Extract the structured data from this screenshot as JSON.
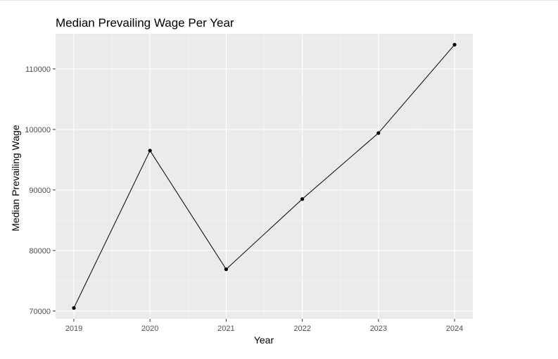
{
  "chart_data": {
    "type": "line",
    "title": "Median Prevailing Wage Per Year",
    "xlabel": "Year",
    "ylabel": "Median Prevailing Wage",
    "x": [
      2019,
      2020,
      2021,
      2022,
      2023,
      2024
    ],
    "series": [
      {
        "values": [
          70500,
          96500,
          76900,
          88500,
          99400,
          114000
        ]
      }
    ],
    "xlim": [
      2018.76,
      2024.24
    ],
    "ylim": [
      68700,
      115800
    ],
    "xticks": [
      "2019",
      "2020",
      "2021",
      "2022",
      "2023",
      "2024"
    ],
    "yticks": [
      70000,
      80000,
      90000,
      100000,
      110000
    ],
    "ytick_labels": [
      "70000",
      "80000",
      "90000",
      "100000",
      "110000"
    ],
    "grid": true,
    "legend": "none",
    "colors": {
      "panel": "#ebebeb",
      "grid_major": "#ffffff",
      "line": "#000000",
      "point": "#000000",
      "tick_text": "#4d4d4d",
      "axis_ticks": "#333333"
    }
  }
}
